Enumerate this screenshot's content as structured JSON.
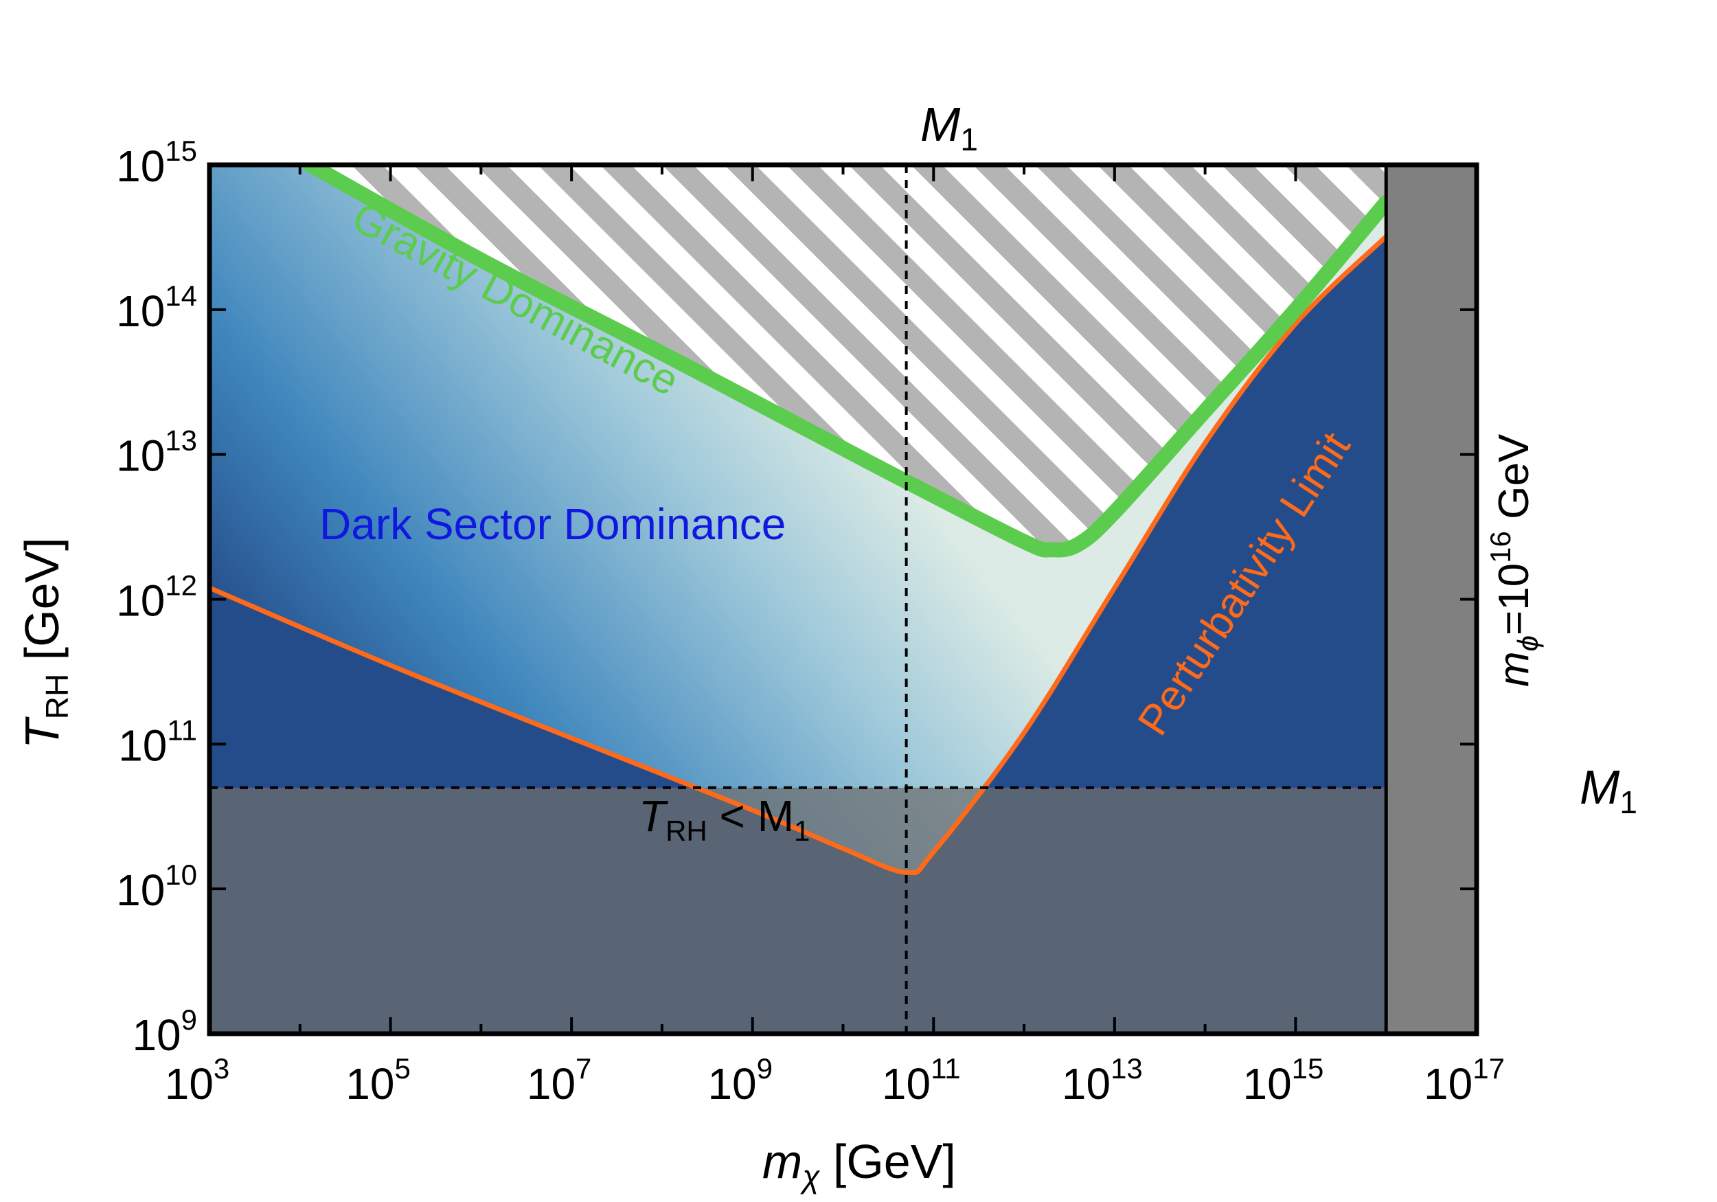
{
  "chart_data": {
    "type": "region",
    "x_scale": "log",
    "y_scale": "log",
    "xlim": [
      1000,
      1e+17
    ],
    "ylim": [
      1000000000.0,
      1000000000000000.0
    ],
    "xlabel": {
      "base": "m",
      "sub": "χ",
      "unit": " [GeV]"
    },
    "ylabel": {
      "base": "T",
      "sub": "RH",
      "unit": " [GeV]"
    },
    "x_ticks": [
      {
        "base": "10",
        "exp": "3",
        "value": 1000
      },
      {
        "base": "10",
        "exp": "5",
        "value": 100000
      },
      {
        "base": "10",
        "exp": "7",
        "value": 10000000
      },
      {
        "base": "10",
        "exp": "9",
        "value": 1000000000
      },
      {
        "base": "10",
        "exp": "11",
        "value": 100000000000.0
      },
      {
        "base": "10",
        "exp": "13",
        "value": 10000000000000.0
      },
      {
        "base": "10",
        "exp": "15",
        "value": 1000000000000000.0
      },
      {
        "base": "10",
        "exp": "17",
        "value": 1e+17
      }
    ],
    "y_ticks": [
      {
        "base": "10",
        "exp": "9",
        "value": 1000000000.0
      },
      {
        "base": "10",
        "exp": "10",
        "value": 10000000000.0
      },
      {
        "base": "10",
        "exp": "11",
        "value": 100000000000.0
      },
      {
        "base": "10",
        "exp": "12",
        "value": 1000000000000.0
      },
      {
        "base": "10",
        "exp": "13",
        "value": 10000000000000.0
      },
      {
        "base": "10",
        "exp": "14",
        "value": 100000000000000.0
      },
      {
        "base": "10",
        "exp": "15",
        "value": 1000000000000000.0
      }
    ],
    "m1_vertical": {
      "x": 50000000000.0,
      "label_base": "M",
      "label_sub": "1"
    },
    "m1_horizontal": {
      "y": 50000000000.0,
      "label_base": "M",
      "label_sub": "1"
    },
    "m_phi_band": {
      "x_start": 1e+16,
      "label_base": "m",
      "label_sub": "ϕ",
      "label_text": "=10",
      "label_exp": "16",
      "label_unit": " GeV",
      "color": "#808080"
    },
    "curves": [
      {
        "name": "Gravity Dominance",
        "color": "#5ccc4e",
        "points": [
          [
            13000.0,
            1000000000000000.0
          ],
          [
            1000000.0,
            220000000000000.0
          ],
          [
            100000000.0,
            50000000000000.0
          ],
          [
            10000000000.0,
            11000000000000.0
          ],
          [
            50000000000.0,
            6500000000000.0
          ],
          [
            1000000000000.0,
            2500000000000.0
          ],
          [
            2000000000000.0,
            2200000000000.0
          ],
          [
            4000000000000.0,
            2400000000000.0
          ],
          [
            10000000000000.0,
            4000000000000.0
          ],
          [
            100000000000000.0,
            20000000000000.0
          ],
          [
            1000000000000000.0,
            100000000000000.0
          ],
          [
            1e+16,
            550000000000000.0
          ]
        ]
      },
      {
        "name": "Perturbativity Limit",
        "color": "#ff6a1a",
        "points": [
          [
            1000,
            1200000000000.0
          ],
          [
            100000.0,
            350000000000.0
          ],
          [
            10000000.0,
            110000000000.0
          ],
          [
            1000000000.0,
            35000000000.0
          ],
          [
            10000000000.0,
            19000000000.0
          ],
          [
            50000000000.0,
            13000000000.0
          ],
          [
            100000000000.0,
            18000000000.0
          ],
          [
            1000000000000.0,
            120000000000.0
          ],
          [
            10000000000000.0,
            1200000000000.0
          ],
          [
            100000000000000.0,
            12000000000000.0
          ],
          [
            1000000000000000.0,
            80000000000000.0
          ],
          [
            1e+16,
            320000000000000.0
          ]
        ]
      }
    ],
    "annotations": [
      {
        "text": "Gravity Dominance",
        "color": "#5ccc4e"
      },
      {
        "text": "Perturbativity Limit",
        "color": "#ff6a1a"
      },
      {
        "text": "Dark Sector Dominance",
        "color": "#1018e0"
      },
      {
        "base": "T",
        "sub": "RH",
        "text": " < M",
        "sub2": "1",
        "color": "#000000"
      }
    ],
    "colors": {
      "dark_fill": "#244c8a",
      "gradient": [
        "#244c8a",
        "#3f86bd",
        "#9fc9da",
        "#dcebe5"
      ],
      "hatch": "#b4b4b4",
      "excluded_overlay": "#6e6e6e"
    }
  }
}
